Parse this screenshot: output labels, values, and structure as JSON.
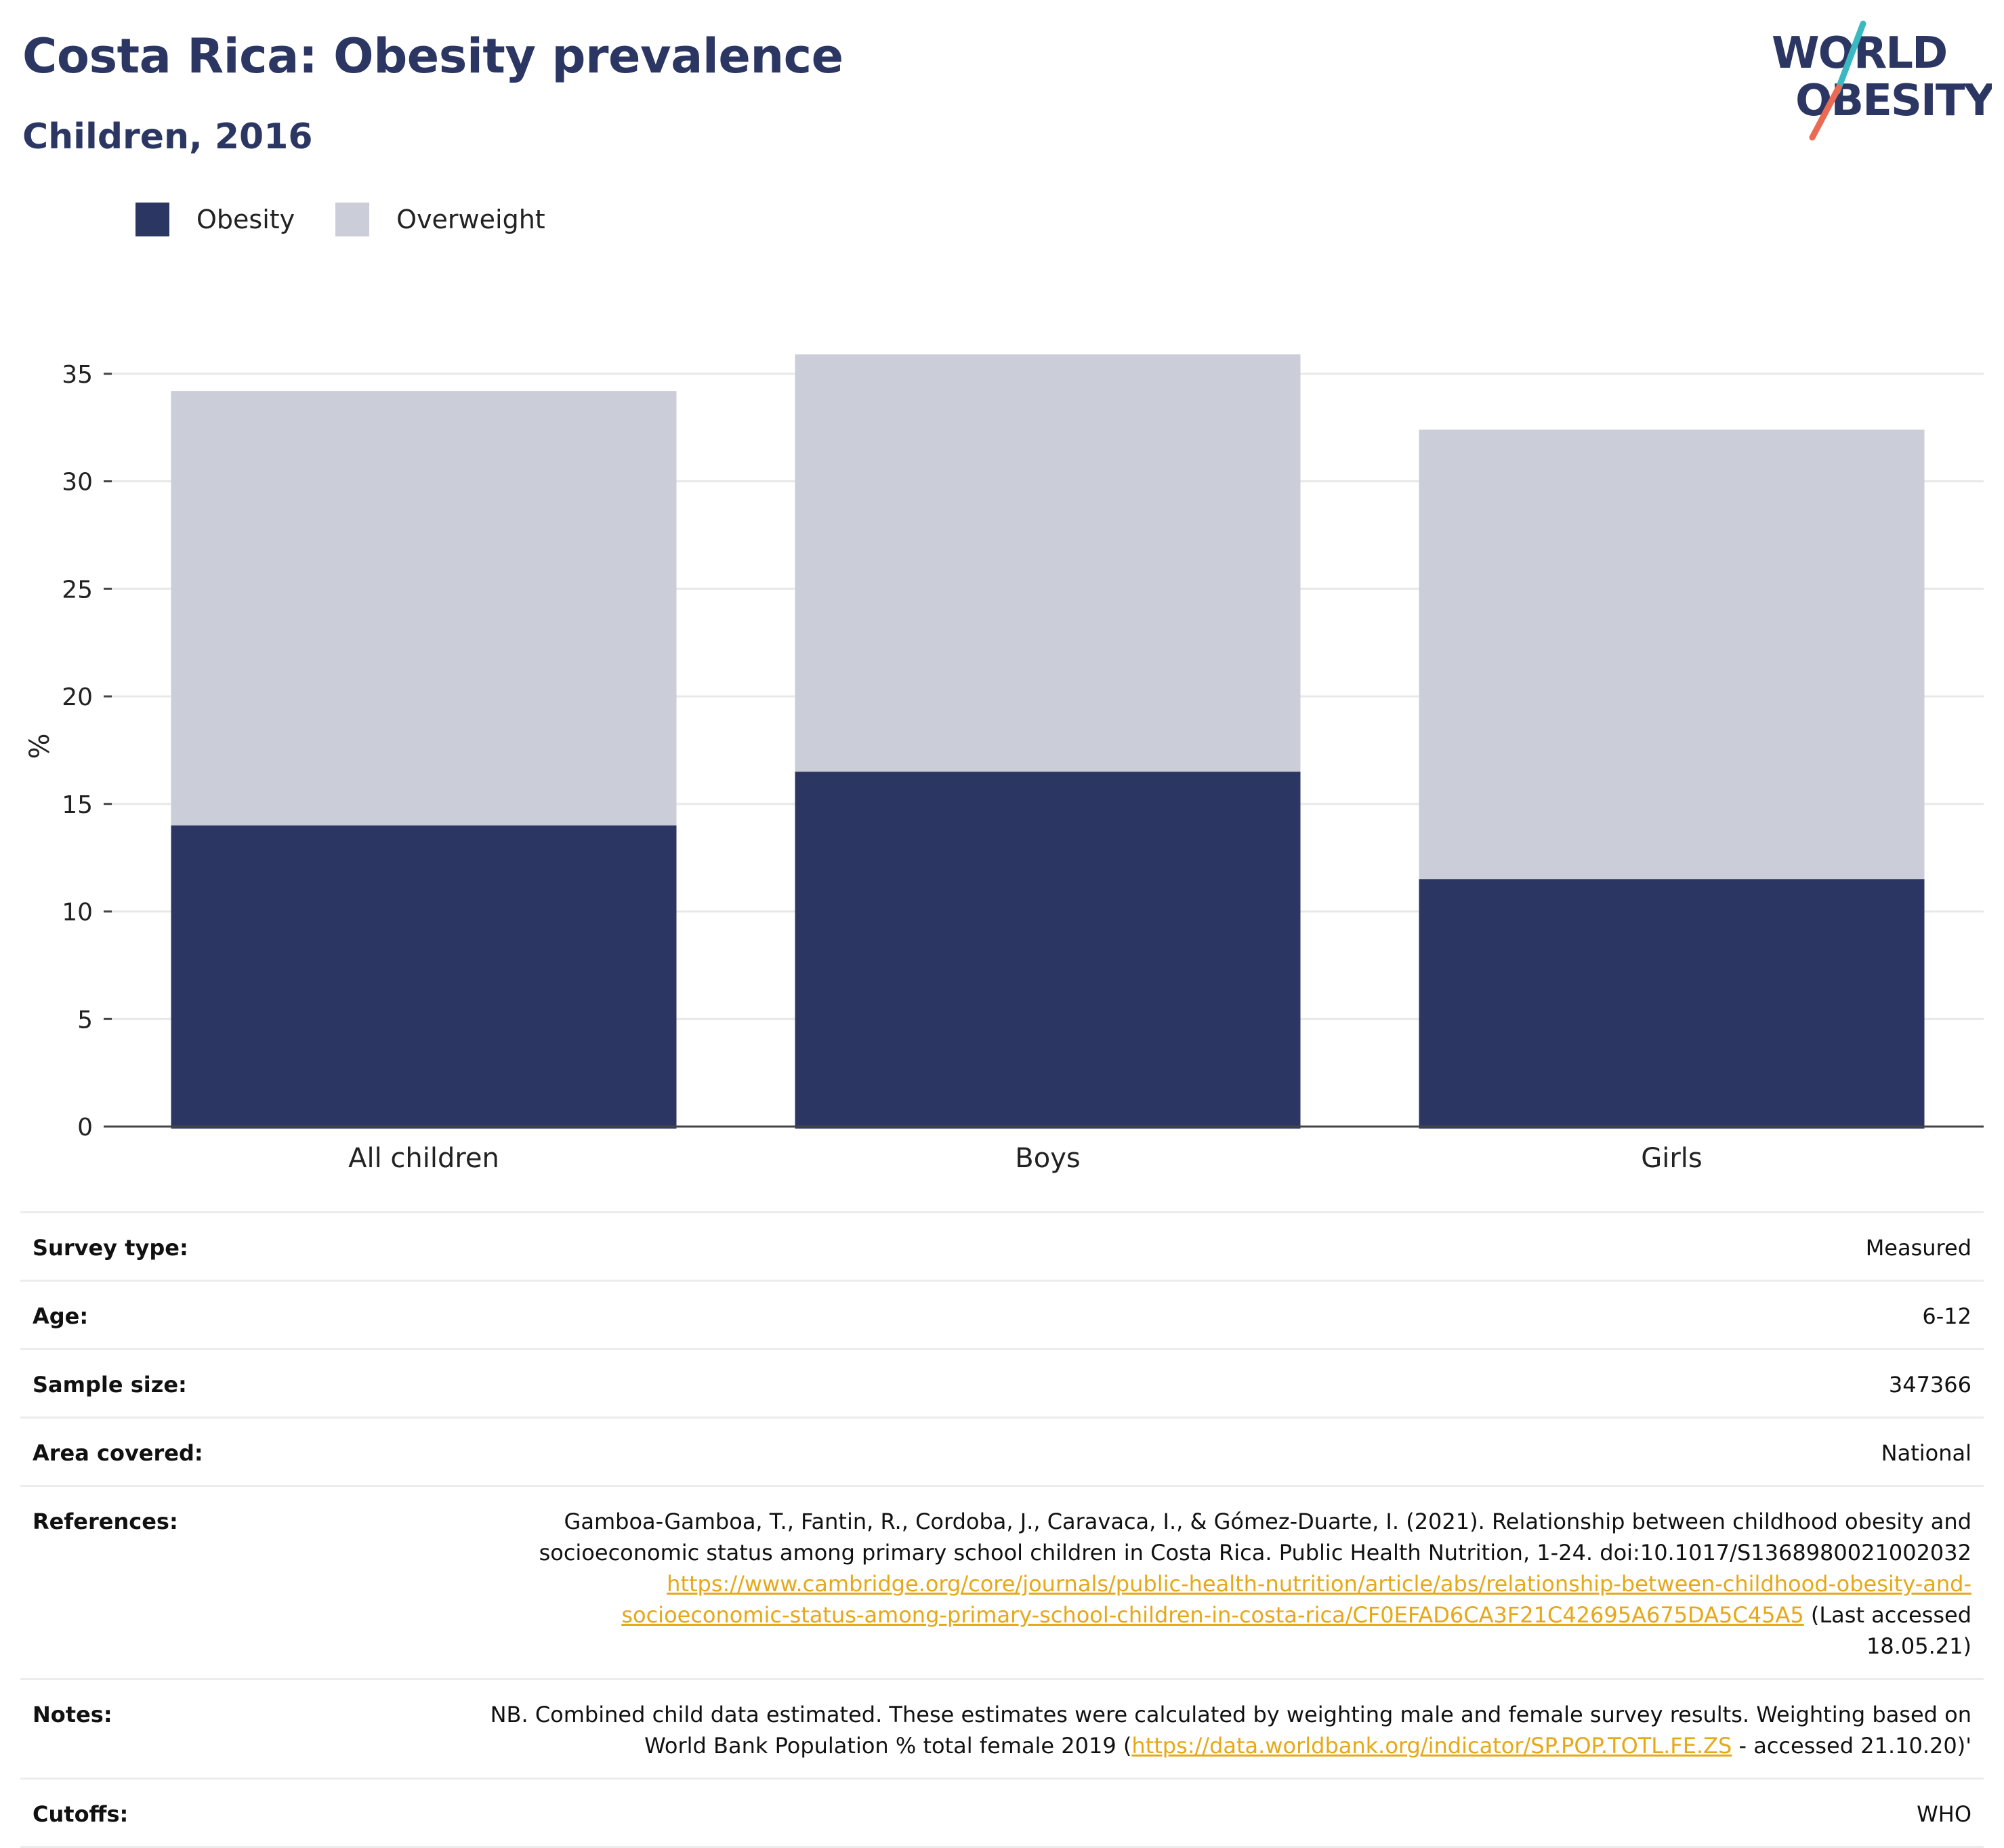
{
  "header": {
    "title": "Costa Rica: Obesity prevalence",
    "subtitle": "Children, 2016"
  },
  "logo": {
    "line1": "WORLD",
    "line2": "OBESITY",
    "colors": {
      "text": "#2b3663",
      "slash_top": "#3bb8c0",
      "slash_bottom": "#ea6a54"
    }
  },
  "colors": {
    "obesity": "#2b3663",
    "overweight": "#cbcdd8",
    "gridline": "#e8e8e8",
    "axis": "#444444",
    "link": "#e6a817"
  },
  "legend": [
    {
      "label": "Obesity",
      "color": "#2b3663"
    },
    {
      "label": "Overweight",
      "color": "#cbcdd8"
    }
  ],
  "chart_data": {
    "type": "bar",
    "stacked": true,
    "categories": [
      "All children",
      "Boys",
      "Girls"
    ],
    "series": [
      {
        "name": "Obesity",
        "values": [
          14.0,
          16.5,
          11.5
        ]
      },
      {
        "name": "Overweight",
        "values": [
          20.2,
          19.4,
          20.9
        ]
      }
    ],
    "totals": [
      34.2,
      35.9,
      32.4
    ],
    "ylabel": "%",
    "xlabel": "",
    "ylim": [
      0,
      36
    ],
    "yticks": [
      0,
      5,
      10,
      15,
      20,
      25,
      30,
      35
    ],
    "grid": true,
    "legend_position": "top-left"
  },
  "info": {
    "survey_type": {
      "label": "Survey type:",
      "value": "Measured"
    },
    "age": {
      "label": "Age:",
      "value": "6-12"
    },
    "sample_size": {
      "label": "Sample size:",
      "value": "347366"
    },
    "area_covered": {
      "label": "Area covered:",
      "value": "National"
    },
    "references": {
      "label": "References:",
      "text_line1": "Gamboa-Gamboa, T., Fantin, R., Cordoba, J., Caravaca, I., & Gómez-Duarte, I. (2021). Relationship between childhood obesity and",
      "text_line2": "socioeconomic status among primary school children in Costa Rica. Public Health Nutrition, 1-24. doi:10.1017/S1368980021002032",
      "link": "https://www.cambridge.org/core/journals/public-health-nutrition/article/abs/relationship-between-childhood-obesity-and-socioeconomic-status-among-primary-school-children-in-costa-rica/CF0EFAD6CA3F21C42695A675DA5C45A5",
      "link_line1": "https://www.cambridge.org/core/journals/public-health-nutrition/article/abs/relationship-between-childhood-obesity-and-",
      "link_line2": "socioeconomic-status-among-primary-school-children-in-costa-rica/CF0EFAD6CA3F21C42695A675DA5C45A5",
      "suffix_a": " (Last accessed",
      "suffix_b": "18.05.21)"
    },
    "notes": {
      "label": "Notes:",
      "line1": "NB. Combined child data estimated. These estimates were calculated by weighting male and female survey results. Weighting based on",
      "line2_prefix": "World Bank Population % total female 2019 (",
      "link": "https://data.worldbank.org/indicator/SP.POP.TOTL.FE.ZS",
      "line2_suffix": " - accessed 21.10.20)'"
    },
    "cutoffs": {
      "label": "Cutoffs:",
      "value": "WHO"
    }
  }
}
